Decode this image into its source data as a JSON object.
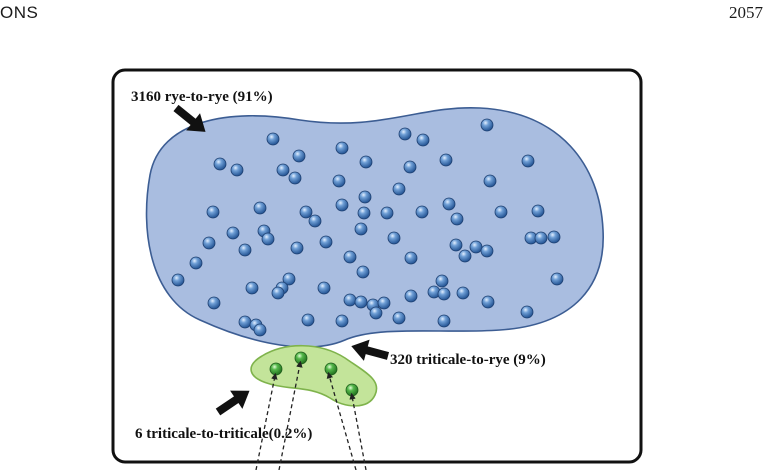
{
  "page": {
    "header_left": "ONS",
    "header_right": "2057"
  },
  "figure": {
    "labels": {
      "rye_to_rye": "3160 rye-to-rye (91%)",
      "triticale_to_rye": "320 triticale-to-rye (9%)",
      "triticale_to_triticale": "6 triticale-to-triticale(0.2%)"
    },
    "colors": {
      "rye_region_fill": "#a9bde0",
      "rye_region_stroke": "#3c5d93",
      "rye_dot": "#4f82c0",
      "triticale_region_fill": "#c3e49a",
      "triticale_region_stroke": "#7fb34c",
      "triticale_dot": "#3c9f38",
      "frame": "#111111"
    }
  }
}
